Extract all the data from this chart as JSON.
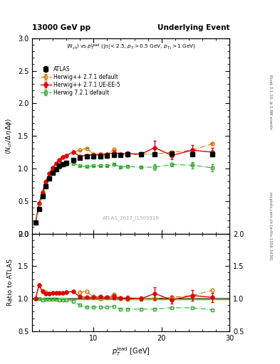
{
  "title_left": "13000 GeV pp",
  "title_right": "Underlying Event",
  "annotation": "ATLAS_2017_I1509919",
  "rivet_label": "Rivet 3.1.10, ≥ 2.8M events",
  "mcplots_label": "mcplots.cern.ch [arXiv:1306.3436]",
  "xlabel": "p_{T}^{lead} [GeV]",
  "ylabel_main": "⟨ N_{ch}/ Δη Δφ⟩",
  "ylabel_ratio": "Ratio to ATLAS",
  "xlim": [
    1,
    30
  ],
  "ylim_main": [
    0,
    3
  ],
  "ylim_ratio": [
    0.5,
    2
  ],
  "atlas_data": {
    "x": [
      1.5,
      2.0,
      2.5,
      3.0,
      3.5,
      4.0,
      4.5,
      5.0,
      5.5,
      6.0,
      7.0,
      8.0,
      9.0,
      10.0,
      11.0,
      12.0,
      13.0,
      14.0,
      15.0,
      17.0,
      19.0,
      21.5,
      24.5,
      27.5
    ],
    "y": [
      0.17,
      0.38,
      0.57,
      0.73,
      0.85,
      0.93,
      0.99,
      1.04,
      1.07,
      1.09,
      1.13,
      1.16,
      1.18,
      1.19,
      1.19,
      1.2,
      1.21,
      1.21,
      1.22,
      1.22,
      1.22,
      1.23,
      1.22,
      1.22
    ],
    "yerr": [
      0.008,
      0.008,
      0.008,
      0.008,
      0.008,
      0.008,
      0.008,
      0.008,
      0.008,
      0.008,
      0.008,
      0.008,
      0.008,
      0.008,
      0.008,
      0.008,
      0.008,
      0.008,
      0.008,
      0.008,
      0.008,
      0.008,
      0.008,
      0.008
    ],
    "color": "#000000",
    "label": "ATLAS",
    "marker": "s",
    "markersize": 4,
    "markerfacecolor": "#000000"
  },
  "herwig_default": {
    "x": [
      1.5,
      2.0,
      2.5,
      3.0,
      3.5,
      4.0,
      4.5,
      5.0,
      5.5,
      6.0,
      7.0,
      8.0,
      9.0,
      10.0,
      11.0,
      12.0,
      13.0,
      14.0,
      15.0,
      17.0,
      19.0,
      21.5,
      24.5,
      27.5
    ],
    "y": [
      0.17,
      0.46,
      0.64,
      0.8,
      0.92,
      1.01,
      1.08,
      1.13,
      1.17,
      1.2,
      1.25,
      1.28,
      1.31,
      1.22,
      1.19,
      1.22,
      1.29,
      1.21,
      1.21,
      1.22,
      1.22,
      1.25,
      1.28,
      1.38
    ],
    "yerr": [
      0.005,
      0.005,
      0.005,
      0.005,
      0.005,
      0.005,
      0.005,
      0.005,
      0.005,
      0.005,
      0.005,
      0.005,
      0.005,
      0.005,
      0.005,
      0.005,
      0.005,
      0.005,
      0.005,
      0.005,
      0.005,
      0.005,
      0.005,
      0.015
    ],
    "color": "#cc7700",
    "label": "Herwig++ 2.7.1 default",
    "linestyle": "-.",
    "marker": "o",
    "markersize": 3.5,
    "markerfacecolor": "none"
  },
  "herwig_ueee5": {
    "x": [
      1.5,
      2.0,
      2.5,
      3.0,
      3.5,
      4.0,
      4.5,
      5.0,
      5.5,
      6.0,
      7.0,
      8.0,
      9.0,
      10.0,
      11.0,
      12.0,
      13.0,
      14.0,
      15.0,
      17.0,
      19.0,
      21.5,
      24.5,
      27.5
    ],
    "y": [
      0.17,
      0.46,
      0.63,
      0.79,
      0.92,
      1.01,
      1.08,
      1.13,
      1.17,
      1.2,
      1.25,
      1.19,
      1.2,
      1.21,
      1.22,
      1.22,
      1.24,
      1.22,
      1.23,
      1.22,
      1.32,
      1.2,
      1.28,
      1.25
    ],
    "yerr": [
      0.005,
      0.005,
      0.005,
      0.005,
      0.005,
      0.005,
      0.005,
      0.005,
      0.005,
      0.005,
      0.005,
      0.005,
      0.005,
      0.005,
      0.005,
      0.005,
      0.04,
      0.005,
      0.03,
      0.03,
      0.1,
      0.06,
      0.08,
      0.07
    ],
    "color": "#dd0000",
    "label": "Herwig++ 2.7.1 UE-EE-5",
    "linestyle": "-",
    "marker": "o",
    "markersize": 3.5,
    "markerfacecolor": "#dd0000"
  },
  "herwig721": {
    "x": [
      1.5,
      2.0,
      2.5,
      3.0,
      3.5,
      4.0,
      4.5,
      5.0,
      5.5,
      6.0,
      7.0,
      8.0,
      9.0,
      10.0,
      11.0,
      12.0,
      13.0,
      14.0,
      15.0,
      17.0,
      19.0,
      21.5,
      24.5,
      27.5
    ],
    "y": [
      0.17,
      0.38,
      0.56,
      0.72,
      0.84,
      0.92,
      0.98,
      1.02,
      1.05,
      1.07,
      1.08,
      1.04,
      1.03,
      1.04,
      1.04,
      1.04,
      1.06,
      1.02,
      1.03,
      1.02,
      1.02,
      1.06,
      1.05,
      1.01
    ],
    "yerr": [
      0.005,
      0.005,
      0.005,
      0.005,
      0.005,
      0.005,
      0.005,
      0.005,
      0.005,
      0.005,
      0.005,
      0.005,
      0.005,
      0.005,
      0.005,
      0.005,
      0.015,
      0.015,
      0.015,
      0.015,
      0.04,
      0.03,
      0.05,
      0.05
    ],
    "color": "#33aa33",
    "label": "Herwig 7.2.1 default",
    "linestyle": "-.",
    "marker": "s",
    "markersize": 3.5,
    "markerfacecolor": "none"
  },
  "ratio_herwig_default": {
    "x": [
      1.5,
      2.0,
      2.5,
      3.0,
      3.5,
      4.0,
      4.5,
      5.0,
      5.5,
      6.0,
      7.0,
      8.0,
      9.0,
      10.0,
      11.0,
      12.0,
      13.0,
      14.0,
      15.0,
      17.0,
      19.0,
      21.5,
      24.5,
      27.5
    ],
    "y": [
      1.0,
      1.21,
      1.12,
      1.1,
      1.08,
      1.09,
      1.09,
      1.09,
      1.09,
      1.1,
      1.11,
      1.1,
      1.11,
      1.03,
      1.0,
      1.02,
      1.07,
      1.0,
      0.99,
      1.0,
      1.0,
      1.02,
      1.05,
      1.13
    ],
    "color": "#cc7700",
    "linestyle": "-.",
    "marker": "o",
    "markersize": 3.5,
    "markerfacecolor": "none"
  },
  "ratio_herwig_ueee5": {
    "x": [
      1.5,
      2.0,
      2.5,
      3.0,
      3.5,
      4.0,
      4.5,
      5.0,
      5.5,
      6.0,
      7.0,
      8.0,
      9.0,
      10.0,
      11.0,
      12.0,
      13.0,
      14.0,
      15.0,
      17.0,
      19.0,
      21.5,
      24.5,
      27.5
    ],
    "y": [
      1.0,
      1.21,
      1.11,
      1.08,
      1.08,
      1.09,
      1.09,
      1.09,
      1.09,
      1.1,
      1.11,
      1.03,
      1.02,
      1.02,
      1.03,
      1.02,
      1.03,
      1.01,
      1.01,
      1.0,
      1.08,
      0.98,
      1.05,
      1.02
    ],
    "yerr": [
      0.005,
      0.005,
      0.005,
      0.005,
      0.005,
      0.005,
      0.005,
      0.005,
      0.005,
      0.005,
      0.005,
      0.005,
      0.005,
      0.005,
      0.005,
      0.005,
      0.04,
      0.005,
      0.03,
      0.03,
      0.1,
      0.06,
      0.08,
      0.07
    ],
    "color": "#dd0000",
    "linestyle": "-",
    "marker": "o",
    "markersize": 3.5,
    "markerfacecolor": "#dd0000"
  },
  "ratio_herwig721": {
    "x": [
      1.5,
      2.0,
      2.5,
      3.0,
      3.5,
      4.0,
      4.5,
      5.0,
      5.5,
      6.0,
      7.0,
      8.0,
      9.0,
      10.0,
      11.0,
      12.0,
      13.0,
      14.0,
      15.0,
      17.0,
      19.0,
      21.5,
      24.5,
      27.5
    ],
    "y": [
      1.0,
      1.0,
      0.98,
      0.99,
      0.99,
      0.99,
      0.99,
      0.98,
      0.98,
      0.98,
      0.96,
      0.9,
      0.87,
      0.87,
      0.87,
      0.87,
      0.88,
      0.84,
      0.84,
      0.84,
      0.84,
      0.86,
      0.86,
      0.83
    ],
    "color": "#33aa33",
    "linestyle": "-.",
    "marker": "s",
    "markersize": 3.5,
    "markerfacecolor": "none"
  },
  "atlas_band_color": "#99cc44",
  "atlas_band_alpha": 0.35,
  "atlas_band_ylow": 0.975,
  "atlas_band_yhigh": 1.025
}
